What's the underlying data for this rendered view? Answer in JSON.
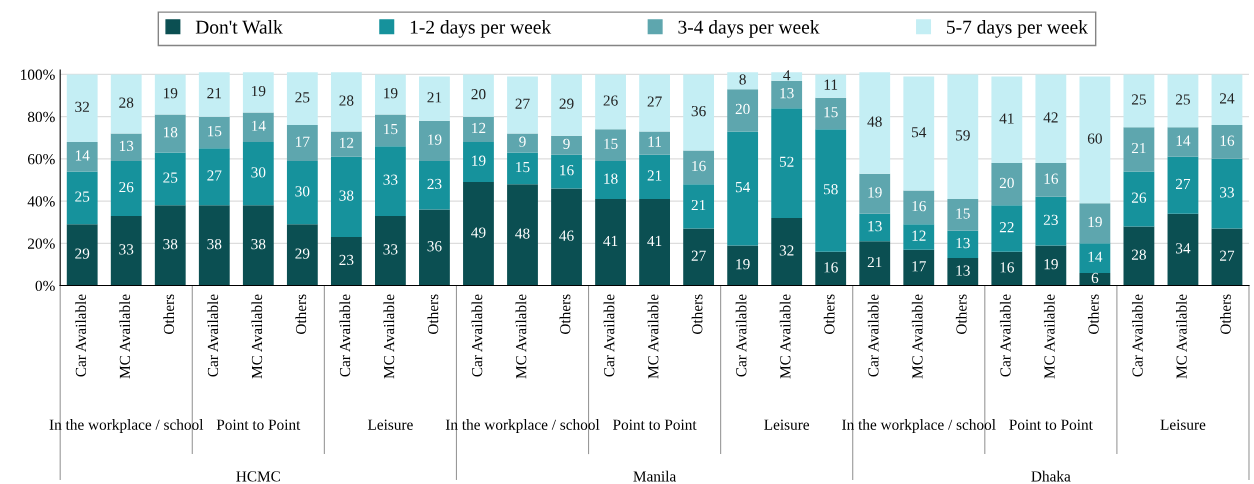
{
  "chart_data": {
    "type": "bar",
    "stacked": true,
    "data_labels": true,
    "grid": "y",
    "legend": "top",
    "ylim": [
      0,
      102
    ],
    "yticks": [
      {
        "value": 0,
        "label": "0%"
      },
      {
        "value": 20,
        "label": "20%"
      },
      {
        "value": 40,
        "label": "40%"
      },
      {
        "value": 60,
        "label": "60%"
      },
      {
        "value": 80,
        "label": "80%"
      },
      {
        "value": 100,
        "label": "100%"
      }
    ],
    "categories": [
      "Car Available",
      "MC Available",
      "Others",
      "Car Available",
      "MC Available",
      "Others",
      "Car Available",
      "MC Available",
      "Others",
      "Car Available",
      "MC Available",
      "Others",
      "Car Available",
      "MC Available",
      "Others",
      "Car Available",
      "MC Available",
      "Others",
      "Car Available",
      "MC Available",
      "Others",
      "Car Available",
      "MC Available",
      "Others",
      "Car Available",
      "MC Available",
      "Others"
    ],
    "annotations": [
      "In the workplace / school",
      "Point to Point",
      "Leisure",
      "In the workplace / school",
      "Point to Point",
      "Leisure",
      "In the workplace / school",
      "Point to Point",
      "Leisure",
      "HCMC",
      "Manila",
      "Dhaka"
    ],
    "series": [
      {
        "name": "Don't Walk",
        "color": "#0b4f52",
        "values": [
          29,
          33,
          38,
          38,
          38,
          29,
          23,
          33,
          36,
          49,
          48,
          46,
          41,
          41,
          27,
          19,
          32,
          16,
          21,
          17,
          13,
          16,
          19,
          6,
          28,
          34,
          27
        ]
      },
      {
        "name": "1-2 days per week",
        "color": "#16929c",
        "values": [
          25,
          26,
          25,
          27,
          30,
          30,
          38,
          33,
          23,
          19,
          15,
          16,
          18,
          21,
          21,
          54,
          52,
          58,
          13,
          12,
          13,
          22,
          23,
          14,
          26,
          27,
          33
        ]
      },
      {
        "name": "3-4 days per week",
        "color": "#5ea6ae",
        "values": [
          14,
          13,
          18,
          15,
          14,
          17,
          12,
          15,
          19,
          12,
          9,
          9,
          15,
          11,
          16,
          20,
          13,
          15,
          19,
          16,
          15,
          20,
          16,
          19,
          21,
          14,
          16
        ]
      },
      {
        "name": "5-7 days per week",
        "color": "#c4eef4",
        "values": [
          32,
          28,
          19,
          21,
          19,
          25,
          28,
          19,
          21,
          20,
          27,
          29,
          26,
          27,
          36,
          8,
          4,
          11,
          48,
          54,
          59,
          41,
          42,
          60,
          25,
          25,
          24
        ]
      }
    ]
  }
}
